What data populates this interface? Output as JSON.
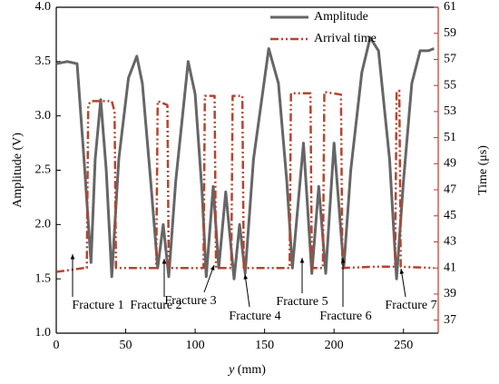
{
  "chart_data": {
    "type": "line",
    "x_label": {
      "var": "y",
      "unit": "(mm)"
    },
    "y_label": "Amplitude (V)",
    "y2_label": "Time (μs)",
    "xlim": [
      0,
      275
    ],
    "xticks": [
      0,
      50,
      100,
      150,
      200,
      250
    ],
    "ylim": [
      1,
      4
    ],
    "yticks": [
      {
        "value": 1,
        "label": "1.0"
      },
      {
        "value": 1.5,
        "label": "1.5"
      },
      {
        "value": 2,
        "label": "2.0"
      },
      {
        "value": 2.5,
        "label": "2.5"
      },
      {
        "value": 3,
        "label": "3.0"
      },
      {
        "value": 3.5,
        "label": "3.5"
      },
      {
        "value": 4,
        "label": "4.0"
      }
    ],
    "y2lim": [
      36,
      61
    ],
    "y2ticks": [
      37,
      39,
      41,
      43,
      45,
      47,
      49,
      51,
      53,
      55,
      57,
      59,
      61
    ],
    "y2_color": "#c0392b",
    "legend": "upper right",
    "series": [
      {
        "name": "Amplitude",
        "color": "#666666",
        "style": "solid",
        "x": [
          0,
          8,
          15,
          20,
          25,
          28,
          32,
          36,
          40,
          45,
          52,
          58,
          62,
          68,
          73,
          77,
          81,
          86,
          95,
          100,
          105,
          108,
          113,
          117,
          122,
          128,
          132,
          136,
          142,
          153,
          160,
          166,
          170,
          178,
          184,
          189,
          194,
          200,
          207,
          212,
          220,
          226,
          232,
          240,
          245,
          250,
          256,
          262,
          268,
          272
        ],
        "values": [
          3.48,
          3.5,
          3.48,
          2.6,
          1.65,
          2.6,
          3.15,
          2.5,
          1.52,
          2.6,
          3.35,
          3.55,
          3.3,
          2.4,
          1.6,
          2.0,
          1.52,
          2.4,
          3.5,
          3.2,
          2.3,
          1.52,
          2.35,
          1.6,
          2.3,
          1.5,
          2.0,
          1.55,
          2.6,
          3.62,
          3.3,
          2.4,
          1.6,
          2.75,
          1.55,
          2.35,
          1.55,
          2.75,
          1.6,
          2.5,
          3.4,
          3.72,
          3.6,
          2.6,
          1.5,
          2.4,
          3.3,
          3.6,
          3.6,
          3.62
        ]
      },
      {
        "name": "Arrival time",
        "color": "#b5442f",
        "style": "dashdotdot",
        "axis": "y2",
        "x": [
          0,
          20,
          22,
          23,
          25,
          40,
          42,
          43,
          72,
          73,
          80,
          81,
          106,
          107,
          114,
          115,
          126,
          127,
          134,
          135,
          168,
          169,
          183,
          184,
          192,
          193,
          205,
          206,
          230,
          244,
          245,
          247,
          248,
          272
        ],
        "values": [
          40.7,
          41,
          41,
          53.5,
          53.8,
          53.8,
          53,
          41,
          41,
          53.8,
          53.5,
          41,
          41,
          54.2,
          54.2,
          41,
          41,
          54.2,
          54.2,
          41,
          41,
          54.4,
          54.4,
          41,
          41,
          54.5,
          54.3,
          41,
          41.1,
          41.1,
          54.5,
          54.6,
          41.1,
          41
        ]
      }
    ],
    "annotations": [
      "Fracture 1",
      "Fracture 2",
      "Fracture 3",
      "Fracture 4",
      "Fracture 5",
      "Fracture 6",
      "Fracture 7"
    ]
  }
}
